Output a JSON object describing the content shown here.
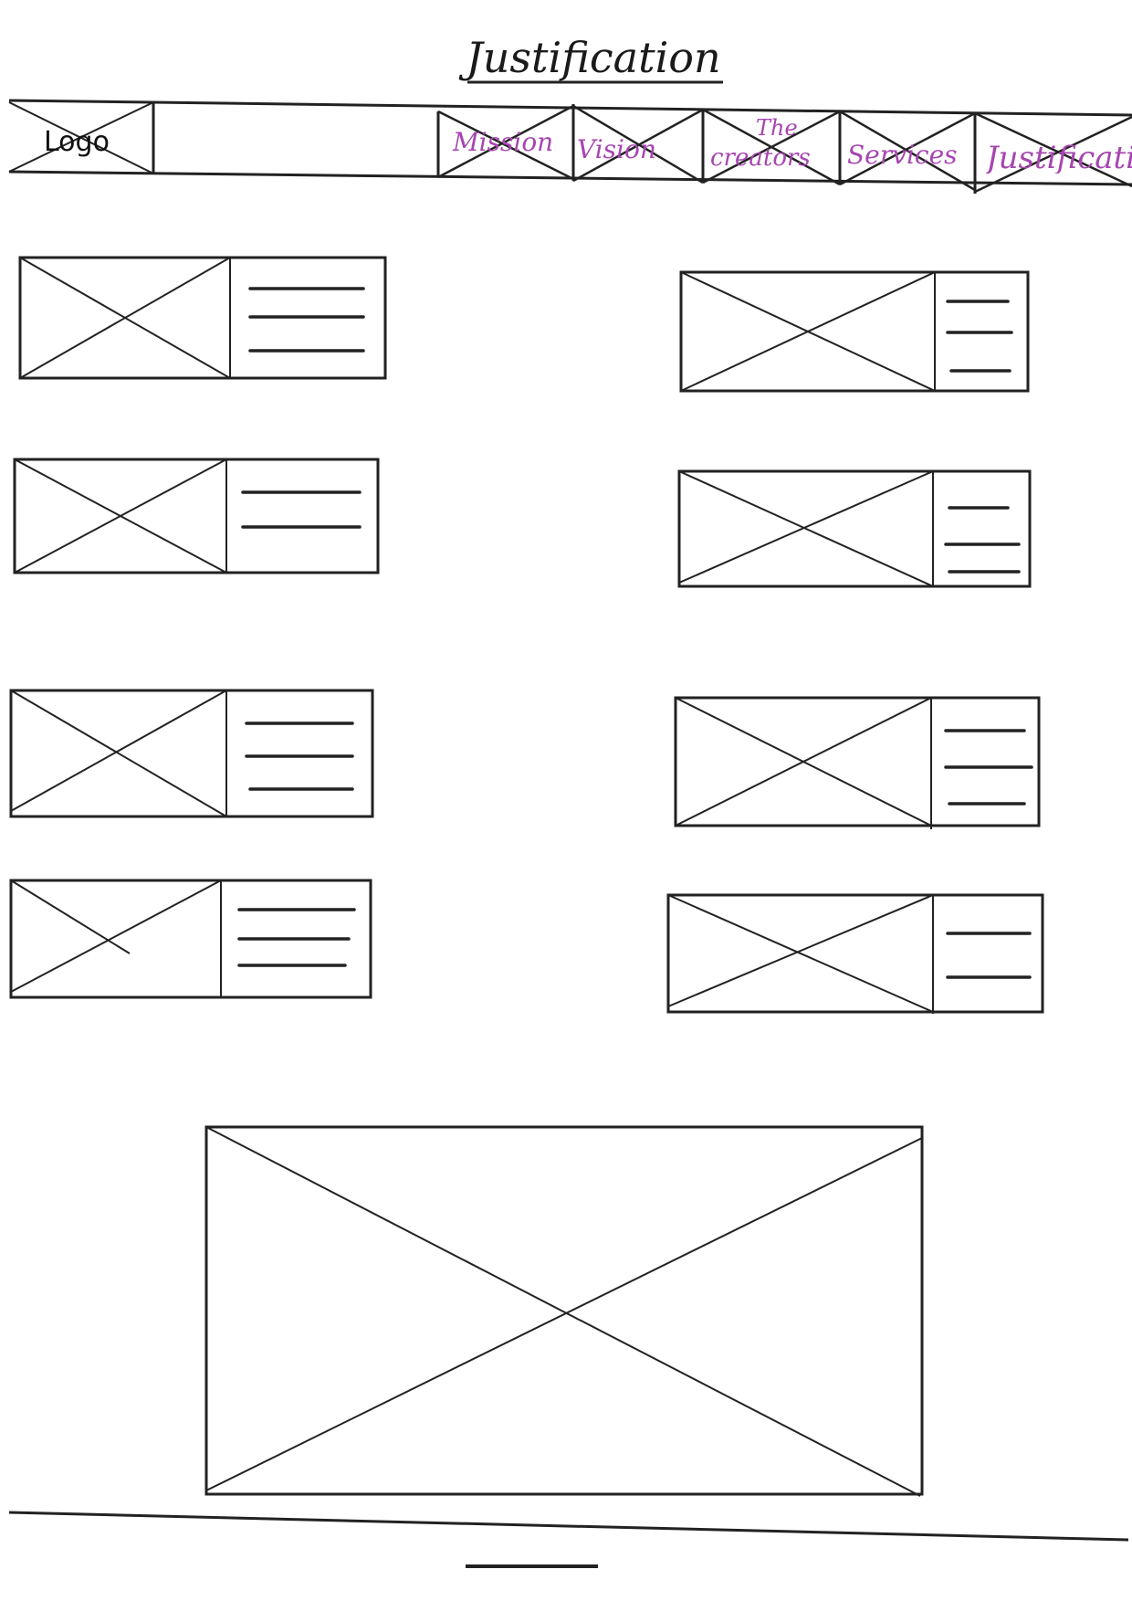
{
  "page": {
    "title": "Justification"
  },
  "nav": {
    "logo": "Logo",
    "items": [
      {
        "label": "Mission"
      },
      {
        "label": "Vision"
      },
      {
        "label": "The creators",
        "line1": "The",
        "line2": "creators"
      },
      {
        "label": "Services"
      },
      {
        "label": "Justificati"
      }
    ]
  }
}
